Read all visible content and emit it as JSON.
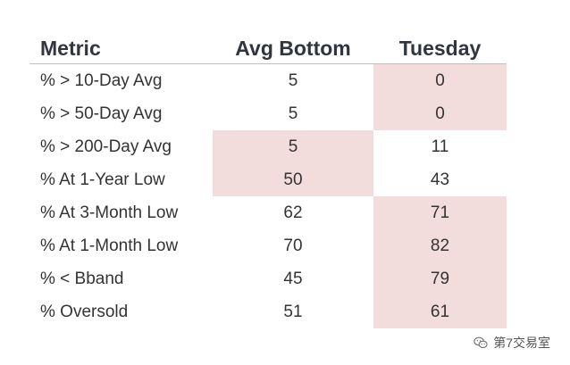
{
  "chart_data": {
    "type": "table",
    "columns": [
      "Metric",
      "Avg Bottom",
      "Tuesday"
    ],
    "rows": [
      {
        "metric": "% > 10-Day Avg",
        "avg_bottom": "5",
        "tuesday": "0",
        "highlight_avg": false,
        "highlight_tue": true
      },
      {
        "metric": "% > 50-Day Avg",
        "avg_bottom": "5",
        "tuesday": "0",
        "highlight_avg": false,
        "highlight_tue": true
      },
      {
        "metric": "% > 200-Day Avg",
        "avg_bottom": "5",
        "tuesday": "11",
        "highlight_avg": true,
        "highlight_tue": false
      },
      {
        "metric": "% At 1-Year Low",
        "avg_bottom": "50",
        "tuesday": "43",
        "highlight_avg": true,
        "highlight_tue": false
      },
      {
        "metric": "% At 3-Month Low",
        "avg_bottom": "62",
        "tuesday": "71",
        "highlight_avg": false,
        "highlight_tue": true
      },
      {
        "metric": "% At 1-Month Low",
        "avg_bottom": "70",
        "tuesday": "82",
        "highlight_avg": false,
        "highlight_tue": true
      },
      {
        "metric": "% < Bband",
        "avg_bottom": "45",
        "tuesday": "79",
        "highlight_avg": false,
        "highlight_tue": true
      },
      {
        "metric": "% Oversold",
        "avg_bottom": "51",
        "tuesday": "61",
        "highlight_avg": false,
        "highlight_tue": true
      }
    ],
    "highlight_color": "#f2dcdc",
    "header_color": "#2f3640"
  },
  "watermark": {
    "text": "第7交易室",
    "icon": "wechat-icon"
  }
}
